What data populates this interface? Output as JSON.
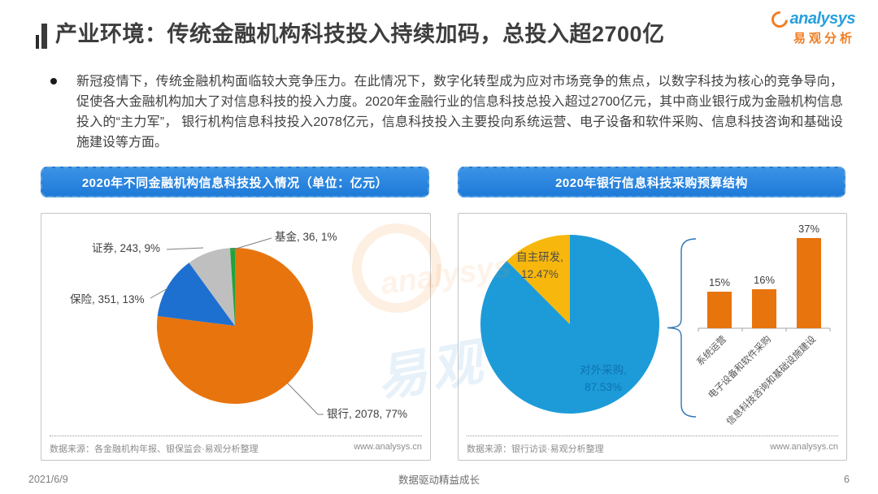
{
  "page": {
    "title": "产业环境：传统金融机构科技投入持续加码，总投入超2700亿",
    "logo": {
      "brand": "analysys",
      "brand_cn": "易观分析"
    },
    "bullet_text": "新冠疫情下，传统金融机构面临较大竞争压力。在此情况下，数字化转型成为应对市场竞争的焦点，以数字科技为核心的竞争导向，促使各大金融机构加大了对信息科技的投入力度。2020年金融行业的信息科技总投入超过2700亿元，其中商业银行成为金融机构信息投入的“主力军”， 银行机构信息科技投入2078亿元，信息科技投入主要投向系统运营、电子设备和软件采购、信息科技咨询和基础设施建设等方面。",
    "footer": {
      "date": "2021/6/9",
      "slogan": "数据驱动精益成长",
      "page_number": "6"
    }
  },
  "panels": {
    "left": {
      "source": "数据来源：各金融机构年报、银保监会·易观分析整理",
      "site": "www.analysys.cn"
    },
    "right": {
      "source": "数据来源：银行访谈·易观分析整理",
      "site": "www.analysys.cn"
    }
  },
  "watermark": {
    "brand": "analysys",
    "brand_cn": "易观"
  },
  "chart_data": [
    {
      "type": "pie",
      "title": "2020年不同金融机构信息科技投入情况（单位：亿元）",
      "unit": "亿元",
      "label_format": "名称, 数值, 百分比%",
      "slices": [
        {
          "label": "银行",
          "value": 2078,
          "pct": 77,
          "color": "#E8740E"
        },
        {
          "label": "保险",
          "value": 351,
          "pct": 13,
          "color": "#1E70D0"
        },
        {
          "label": "证券",
          "value": 243,
          "pct": 9,
          "color": "#BFBFBF"
        },
        {
          "label": "基金",
          "value": 36,
          "pct": 1,
          "color": "#1FA43C"
        }
      ]
    },
    {
      "type": "pie",
      "title": "2020年银行信息科技采购预算结构",
      "slices": [
        {
          "label": "对外采购",
          "pct": 87.53,
          "color": "#1D9BD9",
          "text_color": "#0F72AE"
        },
        {
          "label": "自主研发",
          "pct": 12.47,
          "color": "#F7B70C",
          "text_color": "#4D4D4D"
        }
      ]
    },
    {
      "type": "bar",
      "categories": [
        "系统运营",
        "电子设备和软件采购",
        "信息科技咨询和基础设施建设"
      ],
      "values": [
        15,
        16,
        37
      ],
      "unit": "%",
      "bar_color": "#E8740E",
      "ylim": [
        0,
        40
      ],
      "grid": false
    }
  ]
}
